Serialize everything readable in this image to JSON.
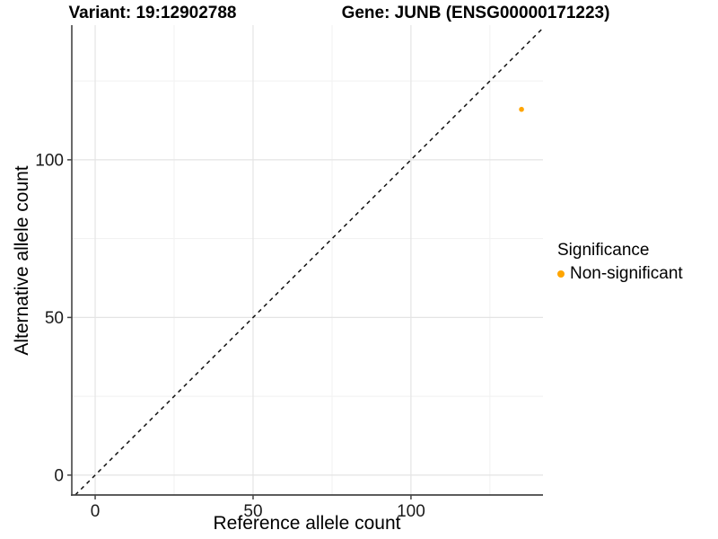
{
  "chart_data": {
    "type": "scatter",
    "title_left": "Variant: 19:12902788",
    "title_right": "Gene: JUNB (ENSG00000171223)",
    "xlabel": "Reference allele count",
    "ylabel": "Alternative allele count",
    "xlim": [
      -7.4,
      141.8
    ],
    "ylim": [
      -6.3,
      142.7
    ],
    "x_ticks": [
      0,
      50,
      100
    ],
    "y_ticks": [
      0,
      50,
      100
    ],
    "x_minor_ticks": [
      25,
      75,
      125
    ],
    "y_minor_ticks": [
      25,
      75,
      125
    ],
    "grid": true,
    "reference_line": {
      "type": "identity",
      "style": "dashed",
      "color": "#111111"
    },
    "series": [
      {
        "name": "Non-significant",
        "color": "#FFA500",
        "points": [
          {
            "x": 135,
            "y": 116
          }
        ]
      }
    ],
    "legend": {
      "title": "Significance",
      "position": "right",
      "items": [
        {
          "label": "Non-significant",
          "color": "#FFA500"
        }
      ]
    }
  },
  "colors": {
    "grid_major": "#e4e4e4",
    "grid_minor": "#f1f1f1",
    "axis_line": "#444444",
    "tick_text": "#1a1a1a"
  }
}
